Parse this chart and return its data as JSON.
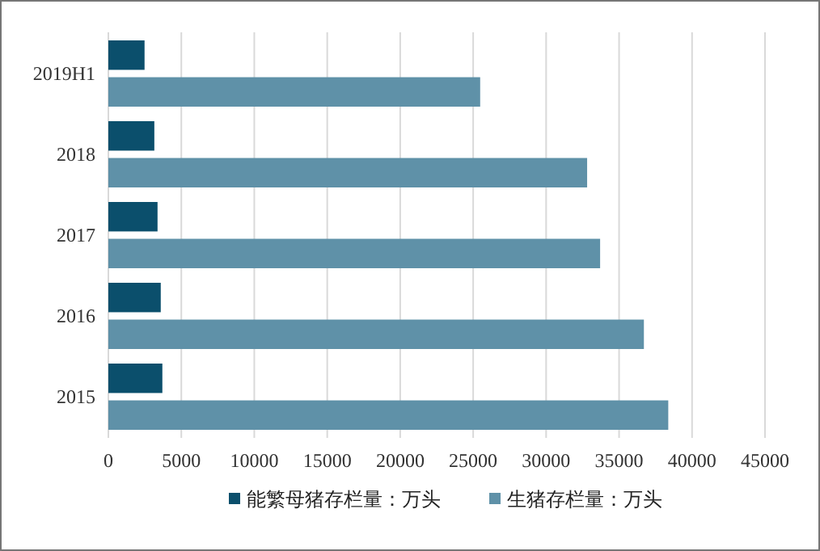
{
  "chart_data": {
    "type": "bar",
    "orientation": "horizontal",
    "categories": [
      "2019H1",
      "2018",
      "2017",
      "2016",
      "2015"
    ],
    "series": [
      {
        "name": "能繁母猪存栏量：万头",
        "color": "#0b4f6c",
        "values": [
          2480,
          3150,
          3370,
          3590,
          3700
        ]
      },
      {
        "name": "生猪存栏量：万头",
        "color": "#5f91a8",
        "values": [
          25480,
          32810,
          33700,
          36700,
          38370
        ]
      }
    ],
    "xlim": [
      0,
      45000
    ],
    "xticks": [
      0,
      5000,
      10000,
      15000,
      20000,
      25000,
      30000,
      35000,
      40000,
      45000
    ],
    "grid": "x",
    "legend": "bottom"
  }
}
